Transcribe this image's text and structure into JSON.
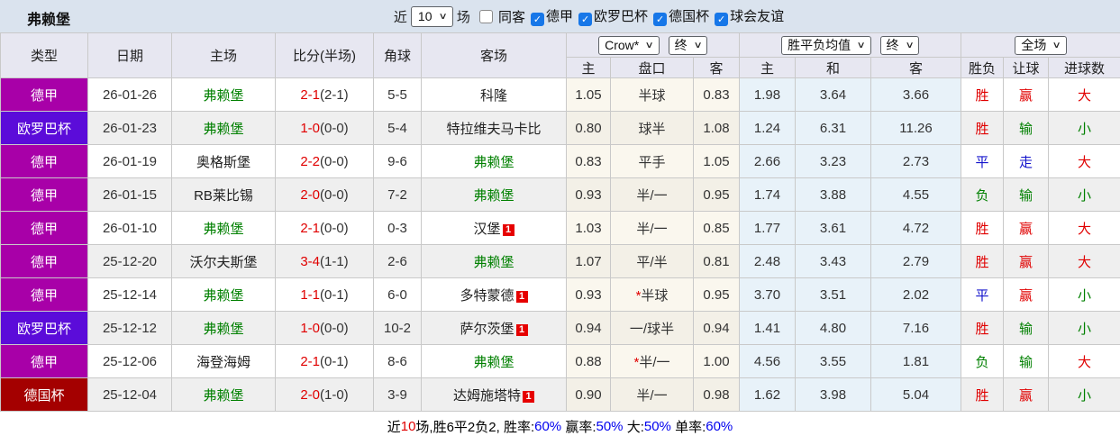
{
  "topbar": {
    "title": "弗赖堡",
    "near_label": "近",
    "match_count": "10",
    "games_label": "场",
    "same_away_label": "同客",
    "league_filters": [
      {
        "label": "德甲",
        "checked": true
      },
      {
        "label": "欧罗巴杯",
        "checked": true
      },
      {
        "label": "德国杯",
        "checked": true
      },
      {
        "label": "球会友谊",
        "checked": true
      }
    ]
  },
  "table": {
    "main_headers": [
      "类型",
      "日期",
      "主场",
      "比分(半场)",
      "角球",
      "客场"
    ],
    "selects": {
      "odds_company": "Crow*",
      "odds_time": "终",
      "avg_type": "胜平负均值",
      "avg_time": "终",
      "scope": "全场"
    },
    "sub_headers": {
      "odds": [
        "主",
        "盘口",
        "客"
      ],
      "avg": [
        "主",
        "和",
        "客"
      ],
      "result": [
        "胜负",
        "让球",
        "进球数"
      ]
    },
    "league_colors": {
      "德甲": "#A800A8",
      "欧罗巴杯": "#5B0CD9",
      "德国杯": "#A40000"
    },
    "rows": [
      {
        "league": "德甲",
        "date": "26-01-26",
        "home": {
          "text": "弗赖堡",
          "self": true
        },
        "score_ft": "2-1",
        "score_ht": "(2-1)",
        "corner": "5-5",
        "away": {
          "text": "科隆",
          "self": false,
          "badge": ""
        },
        "odds_home": "1.05",
        "handicap": {
          "star": false,
          "text": "半球"
        },
        "odds_away": "0.83",
        "avg_home": "1.98",
        "avg_draw": "3.64",
        "avg_away": "3.66",
        "result": {
          "text": "胜",
          "c": "red"
        },
        "handicap_result": {
          "text": "赢",
          "c": "red"
        },
        "goals": {
          "text": "大",
          "c": "red"
        }
      },
      {
        "league": "欧罗巴杯",
        "date": "26-01-23",
        "home": {
          "text": "弗赖堡",
          "self": true
        },
        "score_ft": "1-0",
        "score_ht": "(0-0)",
        "corner": "5-4",
        "away": {
          "text": "特拉维夫马卡比",
          "self": false,
          "badge": ""
        },
        "odds_home": "0.80",
        "handicap": {
          "star": false,
          "text": "球半"
        },
        "odds_away": "1.08",
        "avg_home": "1.24",
        "avg_draw": "6.31",
        "avg_away": "11.26",
        "result": {
          "text": "胜",
          "c": "red"
        },
        "handicap_result": {
          "text": "输",
          "c": "green"
        },
        "goals": {
          "text": "小",
          "c": "green"
        }
      },
      {
        "league": "德甲",
        "date": "26-01-19",
        "home": {
          "text": "奥格斯堡",
          "self": false
        },
        "score_ft": "2-2",
        "score_ht": "(0-0)",
        "corner": "9-6",
        "away": {
          "text": "弗赖堡",
          "self": true,
          "badge": ""
        },
        "odds_home": "0.83",
        "handicap": {
          "star": false,
          "text": "平手"
        },
        "odds_away": "1.05",
        "avg_home": "2.66",
        "avg_draw": "3.23",
        "avg_away": "2.73",
        "result": {
          "text": "平",
          "c": "blue"
        },
        "handicap_result": {
          "text": "走",
          "c": "blue"
        },
        "goals": {
          "text": "大",
          "c": "red"
        }
      },
      {
        "league": "德甲",
        "date": "26-01-15",
        "home": {
          "text": "RB莱比锡",
          "self": false
        },
        "score_ft": "2-0",
        "score_ht": "(0-0)",
        "corner": "7-2",
        "away": {
          "text": "弗赖堡",
          "self": true,
          "badge": ""
        },
        "odds_home": "0.93",
        "handicap": {
          "star": false,
          "text": "半/一"
        },
        "odds_away": "0.95",
        "avg_home": "1.74",
        "avg_draw": "3.88",
        "avg_away": "4.55",
        "result": {
          "text": "负",
          "c": "green"
        },
        "handicap_result": {
          "text": "输",
          "c": "green"
        },
        "goals": {
          "text": "小",
          "c": "green"
        }
      },
      {
        "league": "德甲",
        "date": "26-01-10",
        "home": {
          "text": "弗赖堡",
          "self": true
        },
        "score_ft": "2-1",
        "score_ht": "(0-0)",
        "corner": "0-3",
        "away": {
          "text": "汉堡",
          "self": false,
          "badge": "1"
        },
        "odds_home": "1.03",
        "handicap": {
          "star": false,
          "text": "半/一"
        },
        "odds_away": "0.85",
        "avg_home": "1.77",
        "avg_draw": "3.61",
        "avg_away": "4.72",
        "result": {
          "text": "胜",
          "c": "red"
        },
        "handicap_result": {
          "text": "赢",
          "c": "red"
        },
        "goals": {
          "text": "大",
          "c": "red"
        }
      },
      {
        "league": "德甲",
        "date": "25-12-20",
        "home": {
          "text": "沃尔夫斯堡",
          "self": false
        },
        "score_ft": "3-4",
        "score_ht": "(1-1)",
        "corner": "2-6",
        "away": {
          "text": "弗赖堡",
          "self": true,
          "badge": ""
        },
        "odds_home": "1.07",
        "handicap": {
          "star": false,
          "text": "平/半"
        },
        "odds_away": "0.81",
        "avg_home": "2.48",
        "avg_draw": "3.43",
        "avg_away": "2.79",
        "result": {
          "text": "胜",
          "c": "red"
        },
        "handicap_result": {
          "text": "赢",
          "c": "red"
        },
        "goals": {
          "text": "大",
          "c": "red"
        }
      },
      {
        "league": "德甲",
        "date": "25-12-14",
        "home": {
          "text": "弗赖堡",
          "self": true
        },
        "score_ft": "1-1",
        "score_ht": "(0-1)",
        "corner": "6-0",
        "away": {
          "text": "多特蒙德",
          "self": false,
          "badge": "1"
        },
        "odds_home": "0.93",
        "handicap": {
          "star": true,
          "text": "半球"
        },
        "odds_away": "0.95",
        "avg_home": "3.70",
        "avg_draw": "3.51",
        "avg_away": "2.02",
        "result": {
          "text": "平",
          "c": "blue"
        },
        "handicap_result": {
          "text": "赢",
          "c": "red"
        },
        "goals": {
          "text": "小",
          "c": "green"
        }
      },
      {
        "league": "欧罗巴杯",
        "date": "25-12-12",
        "home": {
          "text": "弗赖堡",
          "self": true
        },
        "score_ft": "1-0",
        "score_ht": "(0-0)",
        "corner": "10-2",
        "away": {
          "text": "萨尔茨堡",
          "self": false,
          "badge": "1"
        },
        "odds_home": "0.94",
        "handicap": {
          "star": false,
          "text": "一/球半"
        },
        "odds_away": "0.94",
        "avg_home": "1.41",
        "avg_draw": "4.80",
        "avg_away": "7.16",
        "result": {
          "text": "胜",
          "c": "red"
        },
        "handicap_result": {
          "text": "输",
          "c": "green"
        },
        "goals": {
          "text": "小",
          "c": "green"
        }
      },
      {
        "league": "德甲",
        "date": "25-12-06",
        "home": {
          "text": "海登海姆",
          "self": false
        },
        "score_ft": "2-1",
        "score_ht": "(0-1)",
        "corner": "8-6",
        "away": {
          "text": "弗赖堡",
          "self": true,
          "badge": ""
        },
        "odds_home": "0.88",
        "handicap": {
          "star": true,
          "text": "半/一"
        },
        "odds_away": "1.00",
        "avg_home": "4.56",
        "avg_draw": "3.55",
        "avg_away": "1.81",
        "result": {
          "text": "负",
          "c": "green"
        },
        "handicap_result": {
          "text": "输",
          "c": "green"
        },
        "goals": {
          "text": "大",
          "c": "red"
        }
      },
      {
        "league": "德国杯",
        "date": "25-12-04",
        "home": {
          "text": "弗赖堡",
          "self": true
        },
        "score_ft": "2-0",
        "score_ht": "(1-0)",
        "corner": "3-9",
        "away": {
          "text": "达姆施塔特",
          "self": false,
          "badge": "1"
        },
        "odds_home": "0.90",
        "handicap": {
          "star": false,
          "text": "半/一"
        },
        "odds_away": "0.98",
        "avg_home": "1.62",
        "avg_draw": "3.98",
        "avg_away": "5.04",
        "result": {
          "text": "胜",
          "c": "red"
        },
        "handicap_result": {
          "text": "赢",
          "c": "red"
        },
        "goals": {
          "text": "小",
          "c": "green"
        }
      }
    ]
  },
  "footer": {
    "segments": [
      {
        "text": "近",
        "c": "black"
      },
      {
        "text": "10",
        "c": "red"
      },
      {
        "text": "场,胜6平2负2, 胜率:",
        "c": "black"
      },
      {
        "text": "60%",
        "c": "blue"
      },
      {
        "text": " 赢率:",
        "c": "black"
      },
      {
        "text": "50%",
        "c": "blue"
      },
      {
        "text": " 大:",
        "c": "black"
      },
      {
        "text": "50%",
        "c": "blue"
      },
      {
        "text": " 单率:",
        "c": "black"
      },
      {
        "text": "60%",
        "c": "blue"
      }
    ]
  },
  "colors": {
    "red": "#E00000",
    "green": "#008000",
    "blue": "#1414CC",
    "black": "#000000",
    "footer_blue": "#0000EE"
  }
}
